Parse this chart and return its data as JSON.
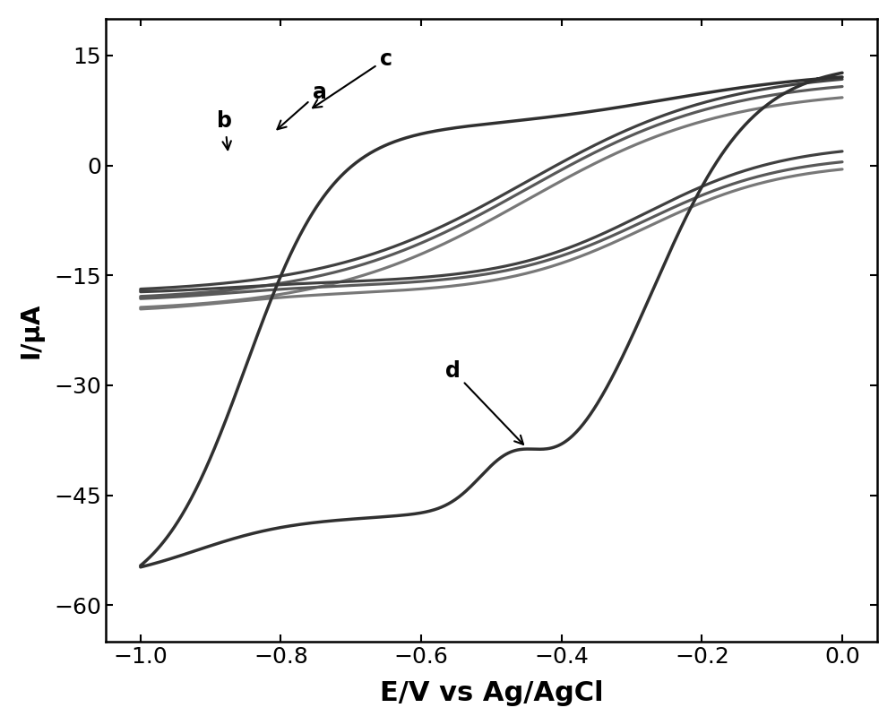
{
  "title": "",
  "xlabel": "E/V vs Ag/AgCl",
  "ylabel": "I/μA",
  "xlim": [
    -1.05,
    0.05
  ],
  "ylim": [
    -65,
    20
  ],
  "xticks": [
    -1.0,
    -0.8,
    -0.6,
    -0.4,
    -0.2,
    0.0
  ],
  "yticks": [
    -60,
    -45,
    -30,
    -15,
    0,
    15
  ],
  "xlabel_fontsize": 22,
  "ylabel_fontsize": 20,
  "tick_fontsize": 18,
  "curve_colors": {
    "a": "#595959",
    "b": "#787878",
    "c": "#404040",
    "d": "#303030"
  },
  "curve_linewidths": {
    "a": 2.3,
    "b": 2.3,
    "c": 2.3,
    "d": 2.5
  },
  "background_color": "#ffffff"
}
